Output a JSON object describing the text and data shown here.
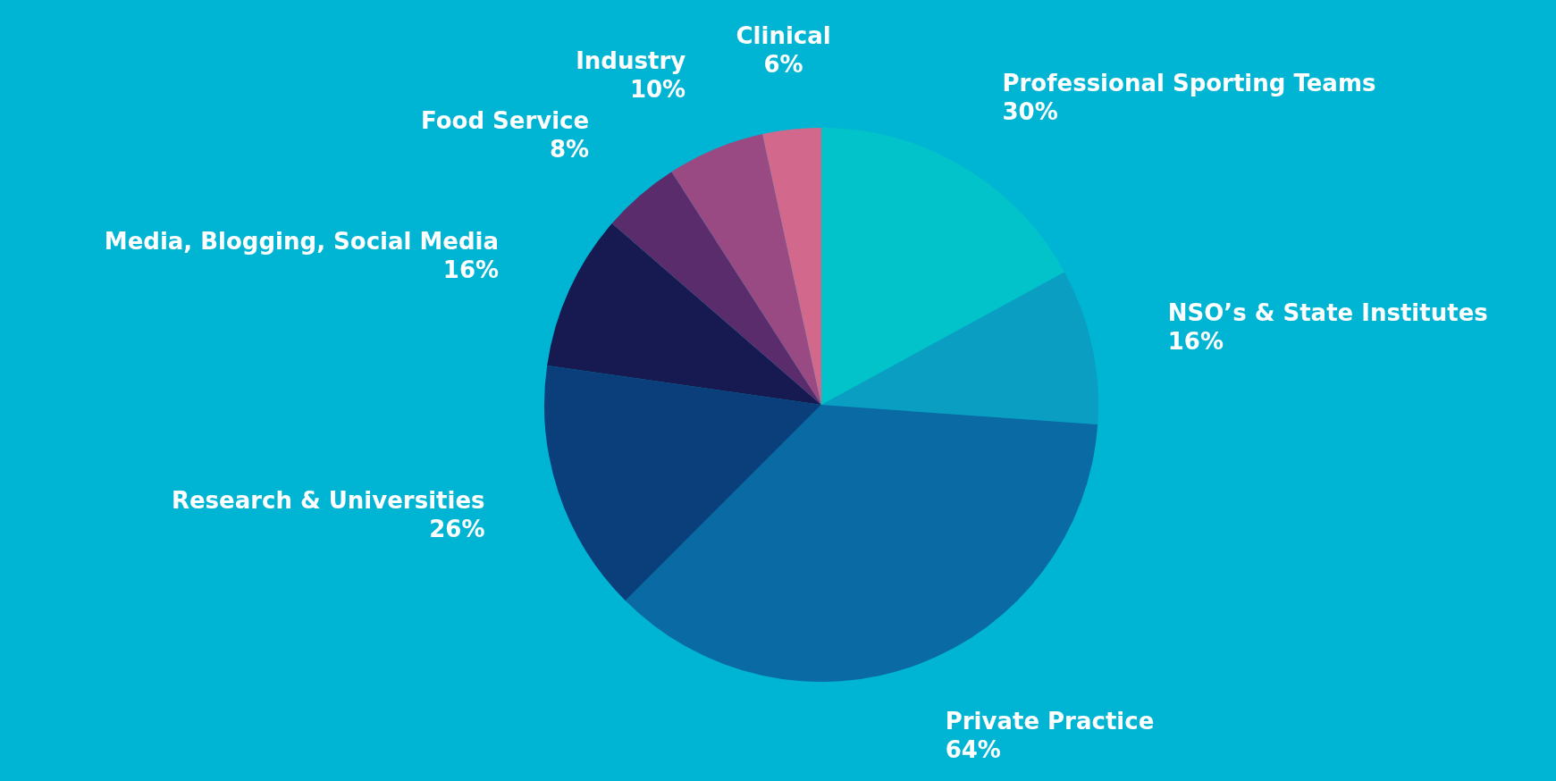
{
  "chart_data": {
    "type": "pie",
    "categories": [
      "Professional Sporting Teams",
      "NSO’s & State Institutes",
      "Private Practice",
      "Research & Universities",
      "Media, Blogging, Social Media",
      "Food Service",
      "Industry",
      "Clinical"
    ],
    "values": [
      30,
      16,
      64,
      26,
      16,
      8,
      10,
      6
    ],
    "value_labels": [
      "30%",
      "16%",
      "64%",
      "26%",
      "16%",
      "8%",
      "10%",
      "6%"
    ],
    "colors": [
      "#02c3c9",
      "#0a9fc2",
      "#0a6aa3",
      "#0b3f7c",
      "#161a50",
      "#5b2c6c",
      "#9a4a82",
      "#d2698c"
    ],
    "legend": false
  }
}
